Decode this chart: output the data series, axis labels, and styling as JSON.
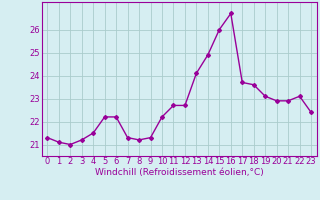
{
  "x": [
    0,
    1,
    2,
    3,
    4,
    5,
    6,
    7,
    8,
    9,
    10,
    11,
    12,
    13,
    14,
    15,
    16,
    17,
    18,
    19,
    20,
    21,
    22,
    23
  ],
  "y": [
    21.3,
    21.1,
    21.0,
    21.2,
    21.5,
    22.2,
    22.2,
    21.3,
    21.2,
    21.3,
    22.2,
    22.7,
    22.7,
    24.1,
    24.9,
    26.0,
    26.7,
    23.7,
    23.6,
    23.1,
    22.9,
    22.9,
    23.1,
    22.4
  ],
  "line_color": "#990099",
  "marker": "D",
  "marker_size": 2.0,
  "line_width": 1.0,
  "xlabel": "Windchill (Refroidissement éolien,°C)",
  "xlabel_fontsize": 6.5,
  "ylim": [
    20.5,
    27.2
  ],
  "xlim": [
    -0.5,
    23.5
  ],
  "yticks": [
    21,
    22,
    23,
    24,
    25,
    26
  ],
  "xticks": [
    0,
    1,
    2,
    3,
    4,
    5,
    6,
    7,
    8,
    9,
    10,
    11,
    12,
    13,
    14,
    15,
    16,
    17,
    18,
    19,
    20,
    21,
    22,
    23
  ],
  "tick_fontsize": 6.0,
  "background_color": "#d6eef2",
  "grid_color": "#aacccc"
}
